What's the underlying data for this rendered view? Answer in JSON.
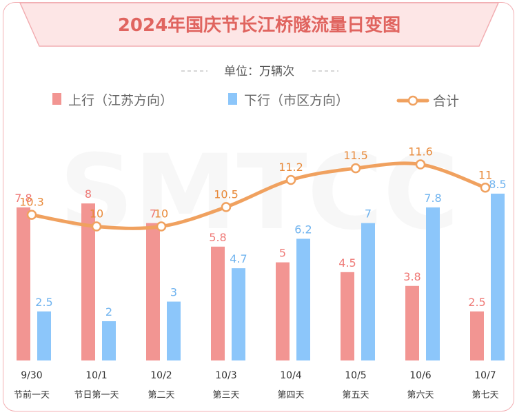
{
  "chart_data": {
    "type": "bar",
    "title": "2024年国庆节长江桥隧流量日变图",
    "unit_label": "单位：万辆次",
    "watermark": "SMTCC",
    "categories": [
      {
        "date": "9/30",
        "day": "节前一天"
      },
      {
        "date": "10/1",
        "day": "节日第一天"
      },
      {
        "date": "10/2",
        "day": "第二天"
      },
      {
        "date": "10/3",
        "day": "第三天"
      },
      {
        "date": "10/4",
        "day": "第四天"
      },
      {
        "date": "10/5",
        "day": "第五天"
      },
      {
        "date": "10/6",
        "day": "第六天"
      },
      {
        "date": "10/7",
        "day": "第七天"
      }
    ],
    "series": [
      {
        "name": "上行（江苏方向）",
        "type": "bar",
        "color": "#f29592",
        "label_color": "#ef7a77",
        "values": [
          7.8,
          8,
          7,
          5.8,
          5,
          4.5,
          3.8,
          2.5
        ]
      },
      {
        "name": "下行（市区方向）",
        "type": "bar",
        "color": "#8cc6fa",
        "label_color": "#6fb3ef",
        "values": [
          2.5,
          2,
          3,
          4.7,
          6.2,
          7,
          7.8,
          8.5
        ]
      },
      {
        "name": "合计",
        "type": "line",
        "color": "#f0a15f",
        "label_color": "#e88a3a",
        "values": [
          10.3,
          10,
          10,
          10.5,
          11.2,
          11.5,
          11.6,
          11
        ]
      }
    ],
    "bar_ylim": [
      0,
      9.2
    ],
    "line_ylim": [
      8,
      14
    ],
    "grid": false,
    "legend_position": "top"
  }
}
